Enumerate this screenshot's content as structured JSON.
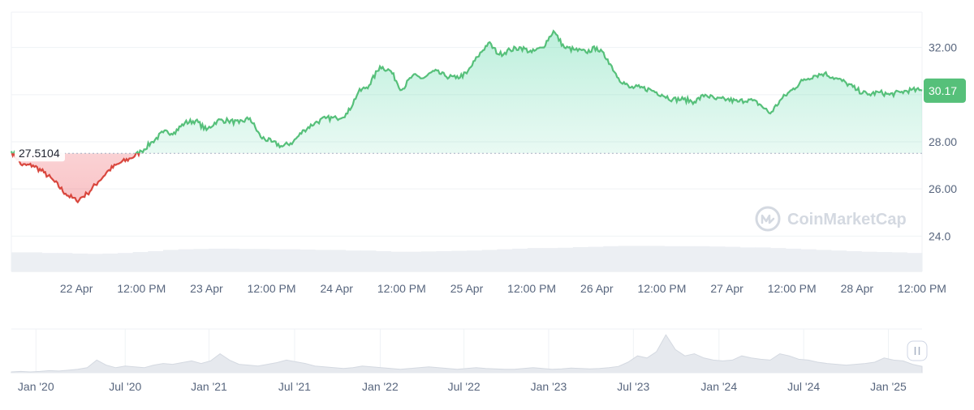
{
  "watermark": {
    "text": "CoinMarketCap",
    "icon": "coinmarketcap-logo-icon"
  },
  "colors": {
    "up": "#16c784",
    "up_line": "#56c07a",
    "down": "#ea3943",
    "down_line": "#d9473e",
    "up_fill": "#d7f3e0",
    "down_fill": "#f8d2d2",
    "grid": "#eff2f5",
    "volume": "#eceff3",
    "axis_text": "#58667e"
  },
  "chart_data": [
    {
      "type": "line",
      "name": "price-chart",
      "reference_value": 27.5104,
      "reference_label": "27.5104",
      "current_value": 30.17,
      "current_label": "30.17",
      "ylim": [
        22.5,
        33.5
      ],
      "y_ticks": [
        {
          "value": 32,
          "label": "32.00"
        },
        {
          "value": 30,
          "label": "30.00"
        },
        {
          "value": 28,
          "label": "28.00"
        },
        {
          "value": 26,
          "label": "26.00"
        },
        {
          "value": 24,
          "label": "24.0"
        }
      ],
      "x_range": [
        0,
        168
      ],
      "x_ticks": [
        {
          "hour": 12,
          "label": "22 Apr"
        },
        {
          "hour": 24,
          "label": "12:00 PM"
        },
        {
          "hour": 36,
          "label": "23 Apr"
        },
        {
          "hour": 48,
          "label": "12:00 PM"
        },
        {
          "hour": 60,
          "label": "24 Apr"
        },
        {
          "hour": 72,
          "label": "12:00 PM"
        },
        {
          "hour": 84,
          "label": "25 Apr"
        },
        {
          "hour": 96,
          "label": "12:00 PM"
        },
        {
          "hour": 108,
          "label": "26 Apr"
        },
        {
          "hour": 120,
          "label": "12:00 PM"
        },
        {
          "hour": 132,
          "label": "27 Apr"
        },
        {
          "hour": 144,
          "label": "12:00 PM"
        },
        {
          "hour": 156,
          "label": "28 Apr"
        },
        {
          "hour": 168,
          "label": "12:00 PM"
        }
      ],
      "series": [
        {
          "x": [
            0,
            2,
            4,
            6,
            8,
            10,
            12,
            14,
            16,
            18,
            20,
            22,
            24,
            26,
            28,
            30,
            32,
            34,
            36,
            38,
            40,
            42,
            44,
            46,
            48,
            50,
            52,
            54,
            56,
            58,
            60,
            62,
            64,
            66,
            68,
            70,
            72,
            74,
            76,
            78,
            80,
            82,
            84,
            86,
            88,
            90,
            92,
            94,
            96,
            98,
            100,
            102,
            104,
            106,
            108,
            110,
            112,
            114,
            116,
            118,
            120,
            122,
            124,
            126,
            128,
            130,
            132,
            134,
            136,
            138,
            140,
            142,
            144,
            146,
            148,
            150,
            152,
            154,
            156,
            158,
            160,
            162,
            164,
            166,
            168
          ],
          "y": [
            27.6,
            27.0,
            27.0,
            26.7,
            26.3,
            25.8,
            25.5,
            25.8,
            26.3,
            26.8,
            27.1,
            27.3,
            27.6,
            28.0,
            28.4,
            28.4,
            28.8,
            28.9,
            28.5,
            28.9,
            28.9,
            28.8,
            29.0,
            28.2,
            28.0,
            27.8,
            28.0,
            28.5,
            28.8,
            29.0,
            29.0,
            29.2,
            30.1,
            30.4,
            31.2,
            31.0,
            30.2,
            30.8,
            30.7,
            31.0,
            30.8,
            30.7,
            30.9,
            31.6,
            32.2,
            31.7,
            31.9,
            32.0,
            31.8,
            32.0,
            32.7,
            32.0,
            31.9,
            31.8,
            32.0,
            31.5,
            30.7,
            30.3,
            30.3,
            30.2,
            30.0,
            29.8,
            29.8,
            29.7,
            30.0,
            29.8,
            29.8,
            29.7,
            29.8,
            29.6,
            29.2,
            29.8,
            30.2,
            30.6,
            30.8,
            30.9,
            30.7,
            30.5,
            30.2,
            30.0,
            30.1,
            30.0,
            30.1,
            30.2,
            30.17
          ]
        }
      ],
      "volume": [
        0.62,
        0.62,
        0.6,
        0.6,
        0.58,
        0.57,
        0.58,
        0.6,
        0.63,
        0.66,
        0.7,
        0.72,
        0.73,
        0.74,
        0.74,
        0.73,
        0.73,
        0.72,
        0.72,
        0.71,
        0.7,
        0.7,
        0.68,
        0.68,
        0.66,
        0.64,
        0.64,
        0.65,
        0.66,
        0.67,
        0.68,
        0.7,
        0.72,
        0.74,
        0.76,
        0.76,
        0.77,
        0.79,
        0.8,
        0.82,
        0.83,
        0.83,
        0.83,
        0.82,
        0.82,
        0.82,
        0.81,
        0.8,
        0.78,
        0.78,
        0.76,
        0.74,
        0.72,
        0.7,
        0.68,
        0.66,
        0.64,
        0.63,
        0.62,
        0.6
      ]
    },
    {
      "type": "area",
      "name": "navigator-chart",
      "x_ticks": [
        {
          "pos": 0.027,
          "label": "Jan '20"
        },
        {
          "pos": 0.125,
          "label": "Jul '20"
        },
        {
          "pos": 0.217,
          "label": "Jan '21"
        },
        {
          "pos": 0.311,
          "label": "Jul '21"
        },
        {
          "pos": 0.405,
          "label": "Jan '22"
        },
        {
          "pos": 0.497,
          "label": "Jul '22"
        },
        {
          "pos": 0.59,
          "label": "Jan '23"
        },
        {
          "pos": 0.683,
          "label": "Jul '23"
        },
        {
          "pos": 0.777,
          "label": "Jan '24"
        },
        {
          "pos": 0.87,
          "label": "Jul '24"
        },
        {
          "pos": 0.963,
          "label": "Jan '25"
        }
      ],
      "values": [
        0.02,
        0.03,
        0.02,
        0.03,
        0.05,
        0.04,
        0.06,
        0.08,
        0.12,
        0.3,
        0.18,
        0.12,
        0.16,
        0.14,
        0.12,
        0.18,
        0.22,
        0.2,
        0.24,
        0.28,
        0.22,
        0.28,
        0.45,
        0.3,
        0.2,
        0.18,
        0.16,
        0.2,
        0.24,
        0.3,
        0.26,
        0.22,
        0.16,
        0.14,
        0.12,
        0.1,
        0.12,
        0.16,
        0.14,
        0.12,
        0.1,
        0.08,
        0.1,
        0.12,
        0.14,
        0.12,
        0.1,
        0.08,
        0.1,
        0.12,
        0.1,
        0.09,
        0.08,
        0.08,
        0.1,
        0.12,
        0.1,
        0.08,
        0.09,
        0.11,
        0.1,
        0.09,
        0.1,
        0.12,
        0.15,
        0.25,
        0.4,
        0.35,
        0.5,
        0.9,
        0.55,
        0.4,
        0.45,
        0.35,
        0.3,
        0.28,
        0.3,
        0.4,
        0.35,
        0.32,
        0.3,
        0.45,
        0.4,
        0.32,
        0.3,
        0.25,
        0.22,
        0.2,
        0.18,
        0.2,
        0.22,
        0.25,
        0.35,
        0.3,
        0.28,
        0.2,
        0.15
      ],
      "handle_icon": "pause-handle-icon"
    }
  ]
}
